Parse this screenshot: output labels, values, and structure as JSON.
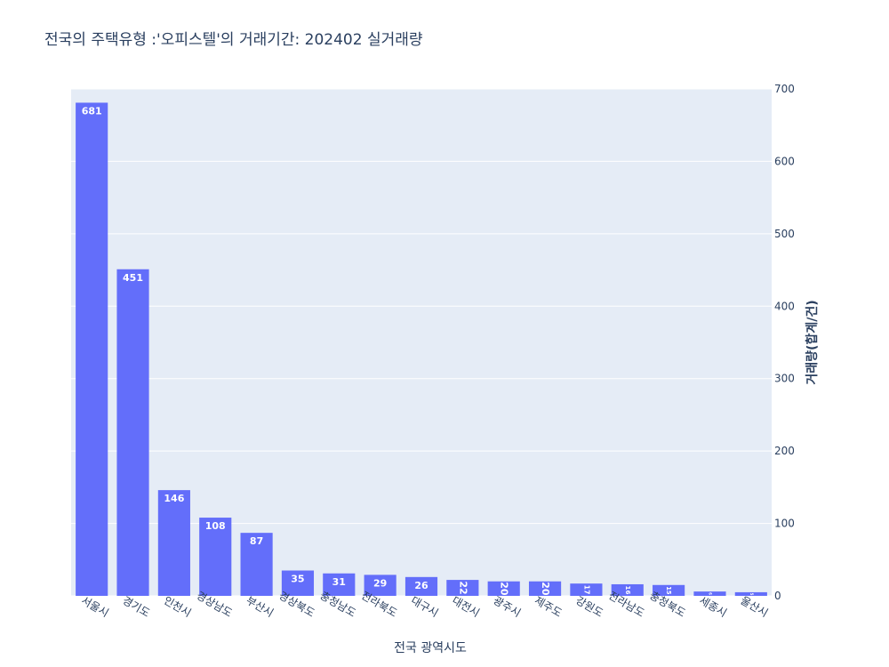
{
  "chart_data": {
    "type": "bar",
    "title": "전국의 주택유형 :'오피스텔'의 거래기간: 202402 실거래량",
    "xlabel": "전국 광역시도",
    "ylabel": "거래량(합계/건)",
    "categories": [
      "서울시",
      "경기도",
      "인천시",
      "경상남도",
      "부산시",
      "경상북도",
      "충청남도",
      "전라북도",
      "대구시",
      "대전시",
      "광주시",
      "제주도",
      "강원도",
      "전라남도",
      "충청북도",
      "세종시",
      "울산시"
    ],
    "values": [
      681,
      451,
      146,
      108,
      87,
      35,
      31,
      29,
      26,
      22,
      20,
      20,
      17,
      16,
      15,
      6,
      5
    ],
    "ylim": [
      0,
      700
    ],
    "yticks": [
      0,
      100,
      200,
      300,
      400,
      500,
      600,
      700
    ],
    "y_axis_side": "right",
    "grid": true,
    "colors": {
      "bar": "#636efa",
      "plot_bg": "#e5ecf6",
      "grid": "#ffffff",
      "text": "#2a3f5f"
    }
  }
}
